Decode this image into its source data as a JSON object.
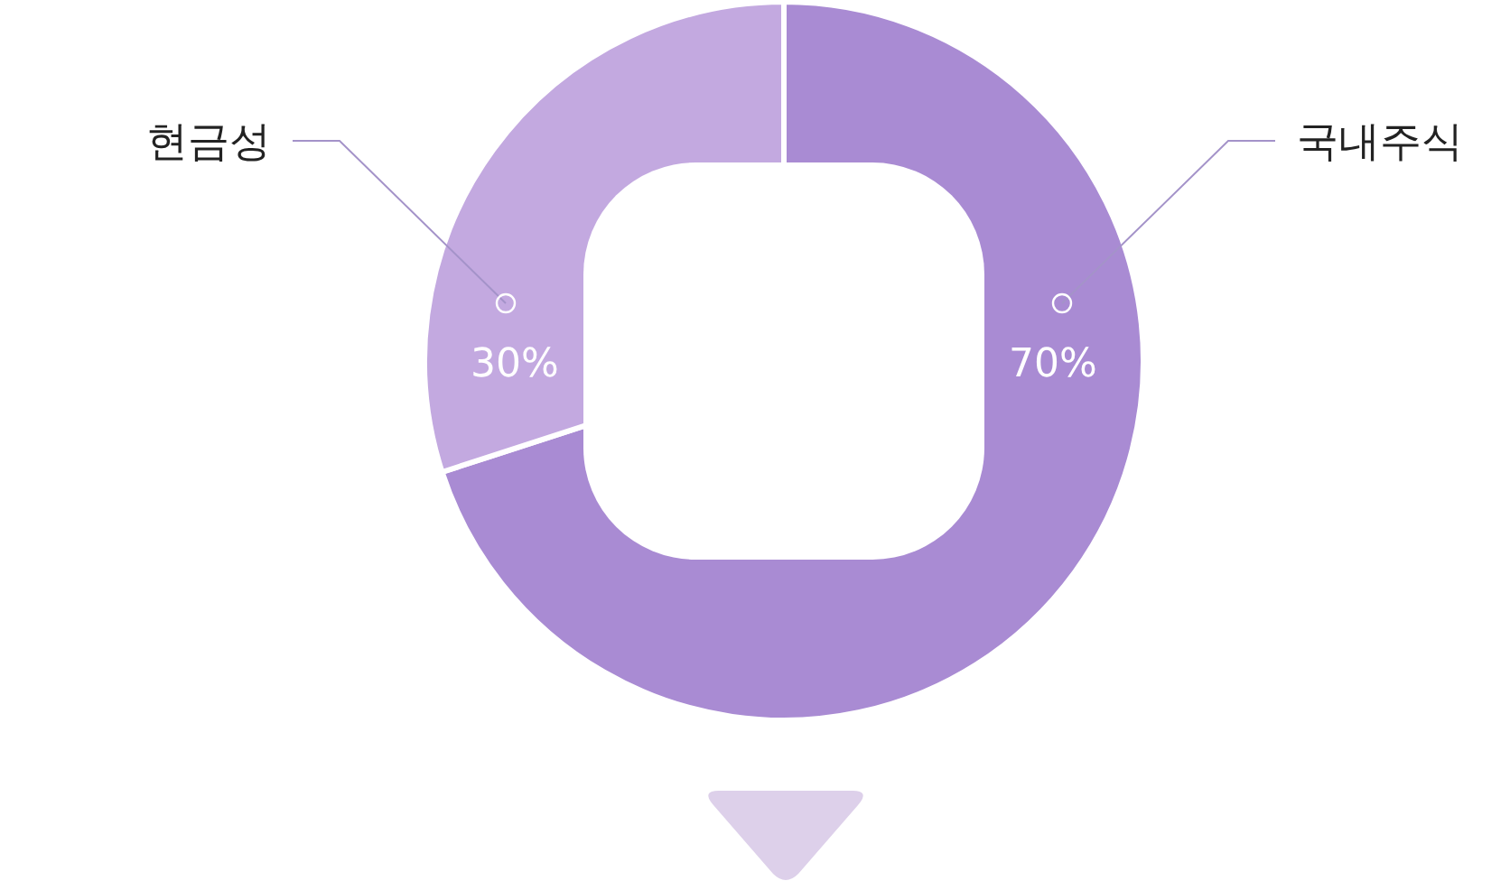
{
  "chart_data": {
    "type": "donut",
    "categories": [
      "국내주식",
      "현금성"
    ],
    "values": [
      70,
      30
    ],
    "colors": [
      "#a98bd3",
      "#c3a9e0"
    ],
    "value_labels": [
      "70%",
      "30%"
    ]
  }
}
